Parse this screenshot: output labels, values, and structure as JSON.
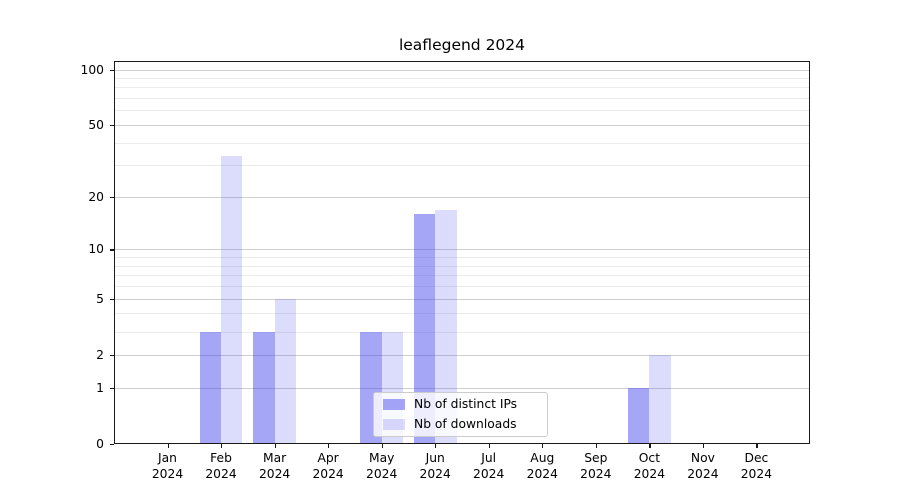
{
  "title": "leaflegend 2024",
  "chart_data": {
    "type": "bar",
    "title": "leaflegend 2024",
    "categories": [
      "Jan",
      "Feb",
      "Mar",
      "Apr",
      "May",
      "Jun",
      "Jul",
      "Aug",
      "Sep",
      "Oct",
      "Nov",
      "Dec"
    ],
    "tick_year": "2024",
    "series": [
      {
        "name": "Nb of distinct IPs",
        "color": "rgba(68,68,238,0.48)",
        "values": [
          0,
          3,
          3,
          0,
          3,
          16,
          0,
          0,
          0,
          1,
          0,
          0
        ]
      },
      {
        "name": "Nb of downloads",
        "color": "rgba(68,68,238,0.19)",
        "values": [
          0,
          34,
          5,
          0,
          3,
          17,
          0,
          0,
          0,
          2,
          0,
          0
        ]
      }
    ],
    "yscale": "log10(value+1)",
    "ylim": [
      0,
      112
    ],
    "yticks": [
      0,
      1,
      2,
      5,
      10,
      20,
      50,
      100
    ],
    "minor_yticks": [
      3,
      4,
      6,
      7,
      8,
      9,
      30,
      40,
      60,
      70,
      80,
      90
    ],
    "xlabel": "",
    "ylabel": "",
    "grid": true,
    "legend_position": "lower center"
  },
  "legend": {
    "item1": "Nb of distinct IPs",
    "item2": "Nb of downloads"
  },
  "colors": {
    "bar_distinct_ips": "rgba(68,68,238,0.48)",
    "bar_downloads": "rgba(68,68,238,0.19)",
    "grid_major": "#cfcfcf",
    "grid_minor": "#ebebeb",
    "spine": "#1a1a1a",
    "background": "#ffffff"
  }
}
